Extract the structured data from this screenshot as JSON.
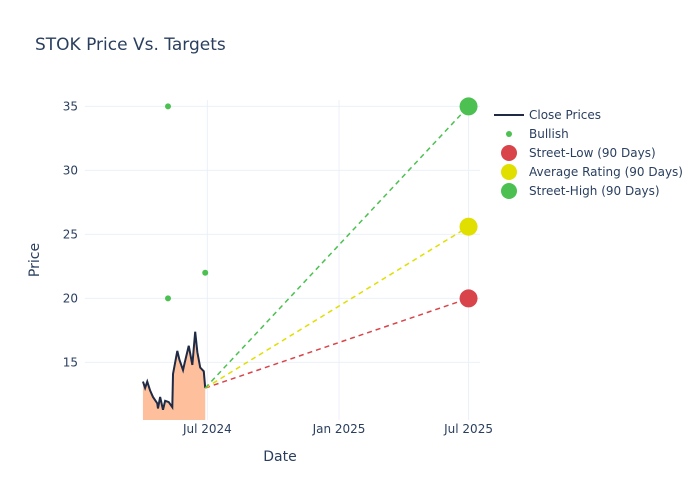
{
  "chart_data": {
    "type": "line",
    "title": "STOK Price Vs. Targets",
    "xlabel": "Date",
    "ylabel": "Price",
    "xlim": [
      "2024-01-12",
      "2025-07-17"
    ],
    "ylim": [
      10.5,
      35.5
    ],
    "x_ticks": [
      {
        "date": "2024-07-01",
        "label": "Jul 2024"
      },
      {
        "date": "2025-01-01",
        "label": "Jan 2025"
      },
      {
        "date": "2025-07-01",
        "label": "Jul 2025"
      }
    ],
    "y_ticks": [
      15,
      20,
      25,
      30,
      35
    ],
    "grid": true,
    "legend_placement": "right",
    "close_prices": {
      "name": "Close Prices",
      "color": "#1f2a44",
      "fill_color": "#fdbf9c",
      "x": [
        "2024-04-02",
        "2024-04-05",
        "2024-04-08",
        "2024-04-12",
        "2024-04-16",
        "2024-04-22",
        "2024-04-23",
        "2024-04-26",
        "2024-04-30",
        "2024-05-03",
        "2024-05-08",
        "2024-05-13",
        "2024-05-14",
        "2024-05-20",
        "2024-05-23",
        "2024-05-28",
        "2024-05-30",
        "2024-06-05",
        "2024-06-10",
        "2024-06-14",
        "2024-06-17",
        "2024-06-21",
        "2024-06-26",
        "2024-06-28"
      ],
      "y": [
        13.5,
        13.0,
        13.5,
        12.8,
        12.3,
        11.8,
        11.4,
        12.3,
        11.3,
        12.0,
        11.9,
        11.5,
        14.1,
        15.9,
        15.2,
        14.4,
        14.9,
        16.3,
        14.8,
        17.4,
        15.8,
        14.6,
        14.3,
        13.0
      ]
    },
    "bullish": {
      "name": "Bullish",
      "color": "#4cc151",
      "x": [
        "2024-05-07",
        "2024-05-07",
        "2024-06-28"
      ],
      "y": [
        35,
        20,
        22
      ]
    },
    "targets": [
      {
        "name": "Street-Low (90 Days)",
        "color": "#d9444a",
        "from": [
          "2024-06-28",
          13.0
        ],
        "to": [
          "2025-07-01",
          20
        ]
      },
      {
        "name": "Average Rating (90 Days)",
        "color": "#e0df00",
        "from": [
          "2024-06-28",
          13.0
        ],
        "to": [
          "2025-07-01",
          25.6
        ]
      },
      {
        "name": "Street-High (90 Days)",
        "color": "#4cc151",
        "from": [
          "2024-06-28",
          13.0
        ],
        "to": [
          "2025-07-01",
          35
        ]
      }
    ]
  }
}
